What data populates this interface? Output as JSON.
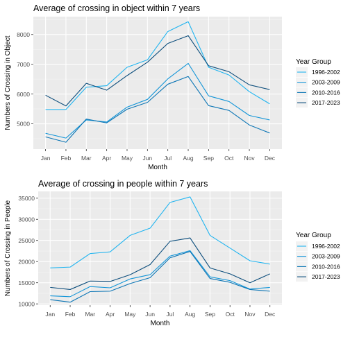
{
  "chart_data": [
    {
      "type": "line",
      "title": "Average of crossing in object within 7 years",
      "xlabel": "Month",
      "ylabel": "Numbers of Crossing in Object",
      "categories": [
        "Jan",
        "Feb",
        "Mar",
        "Apr",
        "May",
        "Jun",
        "Jul",
        "Aug",
        "Sep",
        "Oct",
        "Nov",
        "Dec"
      ],
      "ylim": [
        4150,
        8600
      ],
      "yticks": [
        5000,
        6000,
        7000,
        8000
      ],
      "grid": true,
      "legend": {
        "title": "Year Group",
        "position": "right"
      },
      "series": [
        {
          "name": "1996-2002",
          "color": "#1fb4f0",
          "values": [
            5480,
            5480,
            6230,
            6280,
            6900,
            7150,
            8100,
            8430,
            6900,
            6640,
            6080,
            5670
          ]
        },
        {
          "name": "2003-2009",
          "color": "#1295d8",
          "values": [
            4680,
            4520,
            5130,
            5060,
            5560,
            5820,
            6510,
            7030,
            5940,
            5750,
            5280,
            5130
          ]
        },
        {
          "name": "2010-2016",
          "color": "#0b75b5",
          "values": [
            4560,
            4380,
            5160,
            5030,
            5490,
            5720,
            6330,
            6590,
            5610,
            5450,
            4960,
            4690
          ]
        },
        {
          "name": "2017-2023",
          "color": "#0b4d7c",
          "values": [
            5960,
            5600,
            6360,
            6130,
            6620,
            7070,
            7700,
            7960,
            6950,
            6750,
            6310,
            6150
          ]
        }
      ]
    },
    {
      "type": "line",
      "title": "Average of crossing in people within 7 years",
      "xlabel": "Month",
      "ylabel": "Numbers of Crossing in People",
      "categories": [
        "Jan",
        "Feb",
        "Mar",
        "Apr",
        "May",
        "Jun",
        "Jul",
        "Aug",
        "Sep",
        "Oct",
        "Nov",
        "Dec"
      ],
      "ylim": [
        9700,
        36600
      ],
      "yticks": [
        10000,
        15000,
        20000,
        25000,
        30000,
        35000
      ],
      "grid": true,
      "legend": {
        "title": "Year Group",
        "position": "right"
      },
      "series": [
        {
          "name": "1996-2002",
          "color": "#1fb4f0",
          "values": [
            18500,
            18700,
            21900,
            22300,
            26200,
            27900,
            34000,
            35300,
            26200,
            23200,
            20200,
            19400
          ]
        },
        {
          "name": "2003-2009",
          "color": "#1295d8",
          "values": [
            11900,
            11700,
            14100,
            13800,
            15900,
            16900,
            21300,
            22600,
            16400,
            15500,
            13500,
            13900
          ]
        },
        {
          "name": "2010-2016",
          "color": "#0b75b5",
          "values": [
            11000,
            10400,
            12900,
            13000,
            14800,
            16200,
            20900,
            22400,
            16000,
            15100,
            13400,
            13000
          ]
        },
        {
          "name": "2017-2023",
          "color": "#0b4d7c",
          "values": [
            13900,
            13400,
            15400,
            15300,
            16900,
            19300,
            24800,
            25600,
            18500,
            17100,
            15000,
            17100
          ]
        }
      ]
    }
  ]
}
